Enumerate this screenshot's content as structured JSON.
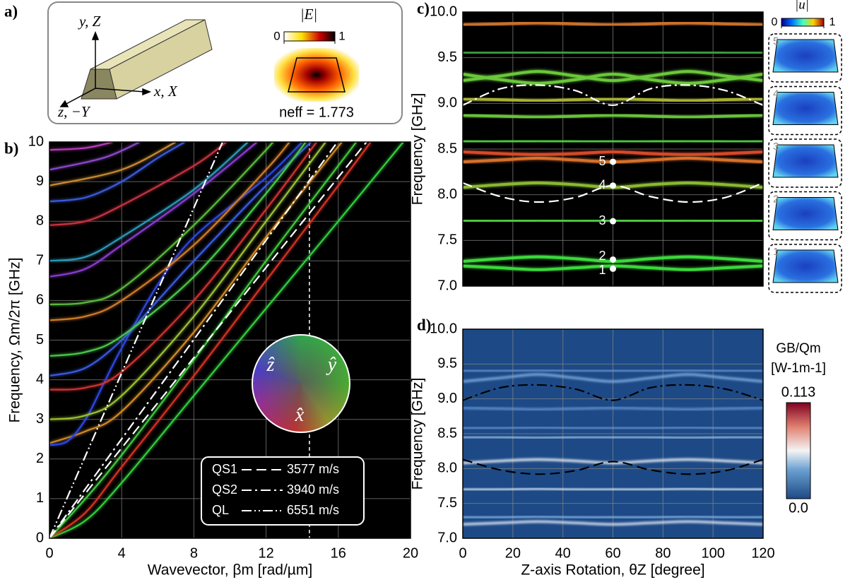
{
  "diagram": {
    "label": "a)",
    "y_axis": "y, Z",
    "x_axis": "x, X",
    "z_axis": "z, −Y",
    "field_title": "|E|",
    "colorbar": {
      "clim": [
        0,
        1
      ],
      "ticks": [
        0,
        1
      ]
    },
    "neff": "neff = 1.773"
  },
  "chart_data": [
    {
      "type": "line",
      "label": "b)",
      "x_label": "Wavevector, βm [rad/µm]",
      "y_label": "Frequency, Ωm/2π [GHz]",
      "xlim": [
        0,
        20
      ],
      "xticks": [
        0,
        4,
        8,
        12,
        16,
        20
      ],
      "ylim": [
        0,
        10
      ],
      "yticks": [
        0,
        1,
        2,
        3,
        4,
        5,
        6,
        7,
        8,
        9,
        10
      ],
      "grid": true,
      "background": "#000000",
      "marker_x": 14.4,
      "wheel_labels": [
        "ẑ",
        "ŷ",
        "x̂"
      ],
      "series": [
        {
          "color": "#2fcf3a",
          "x": [
            0,
            2,
            4,
            8,
            12,
            16,
            19.6
          ],
          "values": [
            0,
            0.45,
            1.4,
            3.6,
            5.8,
            8.0,
            10
          ]
        },
        {
          "color": "#d43020",
          "x": [
            0,
            2,
            4,
            8,
            12,
            16,
            17.8
          ],
          "values": [
            0,
            0.65,
            1.8,
            4.1,
            6.5,
            8.9,
            10
          ]
        },
        {
          "color": "#3ec83a",
          "x": [
            0,
            2,
            4,
            8,
            12,
            17
          ],
          "values": [
            0,
            1.0,
            2.1,
            4.5,
            7.0,
            10
          ]
        },
        {
          "color": "#d08a20",
          "x": [
            0,
            2,
            4,
            8,
            12,
            16.2
          ],
          "values": [
            2.4,
            2.7,
            3.2,
            5.2,
            7.6,
            10
          ]
        },
        {
          "color": "#2e46e0",
          "x": [
            0,
            1,
            2,
            3,
            4,
            6,
            8,
            12,
            14
          ],
          "values": [
            2.35,
            2.45,
            3.0,
            3.9,
            4.8,
            6.4,
            7.6,
            9.1,
            10
          ]
        },
        {
          "color": "#d03030",
          "x": [
            0,
            2,
            4,
            8,
            12,
            14.8
          ],
          "values": [
            3.75,
            3.8,
            4.2,
            6.0,
            8.3,
            10
          ]
        },
        {
          "color": "#9ac030",
          "x": [
            0,
            2,
            4,
            8,
            12,
            15.3
          ],
          "values": [
            3.0,
            3.1,
            3.6,
            5.6,
            8.0,
            10
          ]
        },
        {
          "color": "#3a5ae0",
          "x": [
            0,
            2,
            4,
            6,
            8,
            12,
            14.5
          ],
          "values": [
            4.1,
            4.3,
            5.0,
            6.0,
            7.0,
            8.9,
            10
          ]
        },
        {
          "color": "#48c848",
          "x": [
            0,
            2,
            4,
            8,
            12,
            14.2
          ],
          "values": [
            4.6,
            4.7,
            5.1,
            6.6,
            8.7,
            10
          ]
        },
        {
          "color": "#d07a28",
          "x": [
            0,
            2,
            4,
            8,
            12,
            13.3
          ],
          "values": [
            5.5,
            5.6,
            6.0,
            7.4,
            9.3,
            10
          ]
        },
        {
          "color": "#8a3ad0",
          "x": [
            0,
            2,
            4,
            8,
            11.5
          ],
          "values": [
            6.6,
            6.8,
            7.4,
            8.7,
            10
          ]
        },
        {
          "color": "#5ab83a",
          "x": [
            0,
            2,
            4,
            8,
            12,
            12.3
          ],
          "values": [
            5.9,
            5.95,
            6.3,
            7.9,
            9.8,
            10
          ]
        },
        {
          "color": "#2a9ab8",
          "x": [
            0,
            2,
            4,
            8,
            11
          ],
          "values": [
            7.0,
            7.1,
            7.6,
            8.8,
            10
          ]
        },
        {
          "color": "#c83040",
          "x": [
            0,
            2,
            4,
            8,
            9.8
          ],
          "values": [
            7.9,
            8.0,
            8.4,
            9.4,
            10
          ]
        },
        {
          "color": "#c88a30",
          "x": [
            0,
            4,
            7
          ],
          "values": [
            8.9,
            9.3,
            10
          ]
        },
        {
          "color": "#8a4ac8",
          "x": [
            0,
            3,
            5
          ],
          "values": [
            9.3,
            9.6,
            10
          ]
        },
        {
          "color": "#3a5ad8",
          "x": [
            0,
            2,
            4,
            6,
            7.5
          ],
          "values": [
            8.5,
            8.6,
            9.0,
            9.6,
            10
          ]
        },
        {
          "color": "#b83ab8",
          "x": [
            0,
            2,
            3.5
          ],
          "values": [
            9.8,
            9.85,
            10
          ]
        },
        {
          "name": "QS1",
          "speed": "3577 m/s",
          "color": "#ffffff",
          "dash": "dash",
          "x": [
            0,
            17.56
          ],
          "values": [
            0,
            10
          ]
        },
        {
          "name": "QS2",
          "speed": "3940 m/s",
          "color": "#ffffff",
          "dash": "dash-dot",
          "x": [
            0,
            15.95
          ],
          "values": [
            0,
            10
          ]
        },
        {
          "name": "QL",
          "speed": "6551 m/s",
          "color": "#ffffff",
          "dash": "dash-dot-dot",
          "x": [
            0,
            9.59
          ],
          "values": [
            0,
            10
          ]
        }
      ]
    },
    {
      "type": "line",
      "label": "c)",
      "y_label": "Frequency [GHz]",
      "xlim": [
        0,
        120
      ],
      "xticks": [
        0,
        20,
        40,
        60,
        80,
        100,
        120
      ],
      "xtick_labels": false,
      "ylim": [
        7,
        10
      ],
      "yticks": [
        {
          "value": 7,
          "label": "7.0"
        },
        7.5,
        {
          "value": 8,
          "label": "8.0"
        },
        8.5,
        {
          "value": 9,
          "label": "9.0"
        },
        9.5,
        {
          "value": 10,
          "label": "10.0"
        }
      ],
      "grid": true,
      "background": "#000000",
      "x": [
        0,
        15,
        30,
        45,
        60,
        75,
        90,
        105,
        120
      ],
      "series": [
        {
          "color": "#3ad83a",
          "values": [
            7.22,
            7.2,
            7.18,
            7.2,
            7.22,
            7.2,
            7.18,
            7.2,
            7.22
          ]
        },
        {
          "color": "#3ad83a",
          "values": [
            7.27,
            7.3,
            7.32,
            7.3,
            7.27,
            7.3,
            7.32,
            7.3,
            7.27
          ]
        },
        {
          "color": "#4ac83a",
          "values": [
            7.72,
            7.71,
            7.72,
            7.71,
            7.72,
            7.71,
            7.72,
            7.71,
            7.72
          ]
        },
        {
          "color": "#8ab830",
          "values": [
            8.08,
            8.11,
            8.13,
            8.11,
            8.08,
            8.11,
            8.13,
            8.11,
            8.08
          ]
        },
        {
          "color": "#d8702a",
          "values": [
            8.36,
            8.38,
            8.4,
            8.38,
            8.36,
            8.38,
            8.4,
            8.38,
            8.36
          ]
        },
        {
          "color": "#d84a2a",
          "values": [
            8.47,
            8.45,
            8.44,
            8.45,
            8.47,
            8.45,
            8.44,
            8.45,
            8.47
          ]
        },
        {
          "color": "#4ac83a",
          "values": [
            8.58,
            8.58,
            8.59,
            8.58,
            8.58,
            8.58,
            8.59,
            8.58,
            8.58
          ]
        },
        {
          "color": "#6ac03a",
          "values": [
            8.87,
            8.86,
            8.85,
            8.86,
            8.87,
            8.86,
            8.85,
            8.86,
            8.87
          ]
        },
        {
          "color": "#a8b030",
          "values": [
            9.05,
            9.04,
            9.03,
            9.04,
            9.05,
            9.04,
            9.03,
            9.04,
            9.05
          ]
        },
        {
          "color": "#6ac83a",
          "values": [
            9.25,
            9.3,
            9.35,
            9.3,
            9.25,
            9.3,
            9.35,
            9.3,
            9.25
          ]
        },
        {
          "color": "#6ac83a",
          "values": [
            9.32,
            9.26,
            9.22,
            9.26,
            9.32,
            9.26,
            9.22,
            9.26,
            9.32
          ]
        },
        {
          "color": "#3a9a3a",
          "values": [
            9.55,
            9.55,
            9.56,
            9.55,
            9.55,
            9.55,
            9.56,
            9.55,
            9.55
          ]
        },
        {
          "color": "#c8702a",
          "values": [
            9.86,
            9.87,
            9.88,
            9.87,
            9.86,
            9.87,
            9.88,
            9.87,
            9.86
          ]
        },
        {
          "color": "#ffffff",
          "dash": "dash-dot",
          "values": [
            8.98,
            9.16,
            9.2,
            9.14,
            8.98,
            9.16,
            9.2,
            9.14,
            8.98
          ]
        },
        {
          "color": "#ffffff",
          "dash": "dash",
          "values": [
            8.13,
            7.98,
            7.92,
            7.97,
            8.1,
            7.98,
            7.92,
            7.97,
            8.13
          ]
        }
      ],
      "points": {
        "x": 60,
        "values": [
          7.19,
          7.29,
          7.71,
          8.1,
          8.36
        ],
        "labels": [
          "1",
          "2",
          "3",
          "4",
          "5"
        ]
      },
      "insets": [
        "5",
        "4",
        "3",
        "2",
        "1"
      ],
      "colorbar": {
        "title": "|u|",
        "clim": [
          0,
          1
        ],
        "ticks": [
          0,
          1
        ]
      }
    },
    {
      "type": "line",
      "label": "d)",
      "x_label": "Z-axis Rotation, θZ [degree]",
      "y_label": "Frequency [GHz]",
      "xlim": [
        0,
        120
      ],
      "xticks": [
        0,
        20,
        40,
        60,
        80,
        100,
        120
      ],
      "ylim": [
        7,
        10
      ],
      "yticks": [
        {
          "value": 7,
          "label": "7.0"
        },
        7.5,
        {
          "value": 8,
          "label": "8.0"
        },
        8.5,
        {
          "value": 9,
          "label": "9.0"
        },
        9.5,
        {
          "value": 10,
          "label": "10.0"
        }
      ],
      "grid": true,
      "background": "#1d4a86",
      "x": [
        0,
        15,
        30,
        45,
        60,
        75,
        90,
        105,
        120
      ],
      "series": [
        {
          "color": "#f0f4ff",
          "values": [
            7.2,
            7.22,
            7.24,
            7.22,
            7.2,
            7.22,
            7.24,
            7.22,
            7.2
          ]
        },
        {
          "color": "#8ab8e8",
          "values": [
            7.3,
            7.3,
            7.31,
            7.3,
            7.3,
            7.3,
            7.31,
            7.3,
            7.3
          ]
        },
        {
          "color": "#e8f0ff",
          "values": [
            7.7,
            7.7,
            7.71,
            7.7,
            7.7,
            7.7,
            7.71,
            7.7,
            7.7
          ]
        },
        {
          "color": "#ffffff",
          "values": [
            8.08,
            8.11,
            8.13,
            8.11,
            8.08,
            8.11,
            8.13,
            8.11,
            8.08
          ]
        },
        {
          "color": "#a8c8f0",
          "values": [
            8.45,
            8.45,
            8.44,
            8.45,
            8.45,
            8.45,
            8.44,
            8.45,
            8.45
          ]
        },
        {
          "color": "#6a9ad8",
          "values": [
            8.58,
            8.58,
            8.59,
            8.58,
            8.58,
            8.58,
            8.59,
            8.58,
            8.58
          ]
        },
        {
          "color": "#6a9ad8",
          "values": [
            8.87,
            8.86,
            8.85,
            8.86,
            8.87,
            8.86,
            8.85,
            8.86,
            8.87
          ]
        },
        {
          "color": "#8ab8e8",
          "values": [
            9.25,
            9.3,
            9.35,
            9.3,
            9.25,
            9.3,
            9.35,
            9.3,
            9.25
          ]
        },
        {
          "color": "#6a9ad8",
          "values": [
            9.4,
            9.4,
            9.41,
            9.4,
            9.4,
            9.4,
            9.41,
            9.4,
            9.4
          ]
        },
        {
          "color": "#000000",
          "dash": "dash-dot",
          "values": [
            8.98,
            9.16,
            9.2,
            9.14,
            8.98,
            9.16,
            9.2,
            9.14,
            8.98
          ]
        },
        {
          "color": "#000000",
          "dash": "dash",
          "values": [
            8.13,
            7.98,
            7.92,
            7.97,
            8.1,
            7.98,
            7.92,
            7.97,
            8.13
          ]
        }
      ],
      "colorbar": {
        "title": "GB/Qm",
        "unit": "[W-1m-1]",
        "clim": [
          0,
          0.113
        ],
        "ticks": [
          {
            "value": 0,
            "label": "0.0"
          },
          0.113
        ]
      }
    }
  ]
}
